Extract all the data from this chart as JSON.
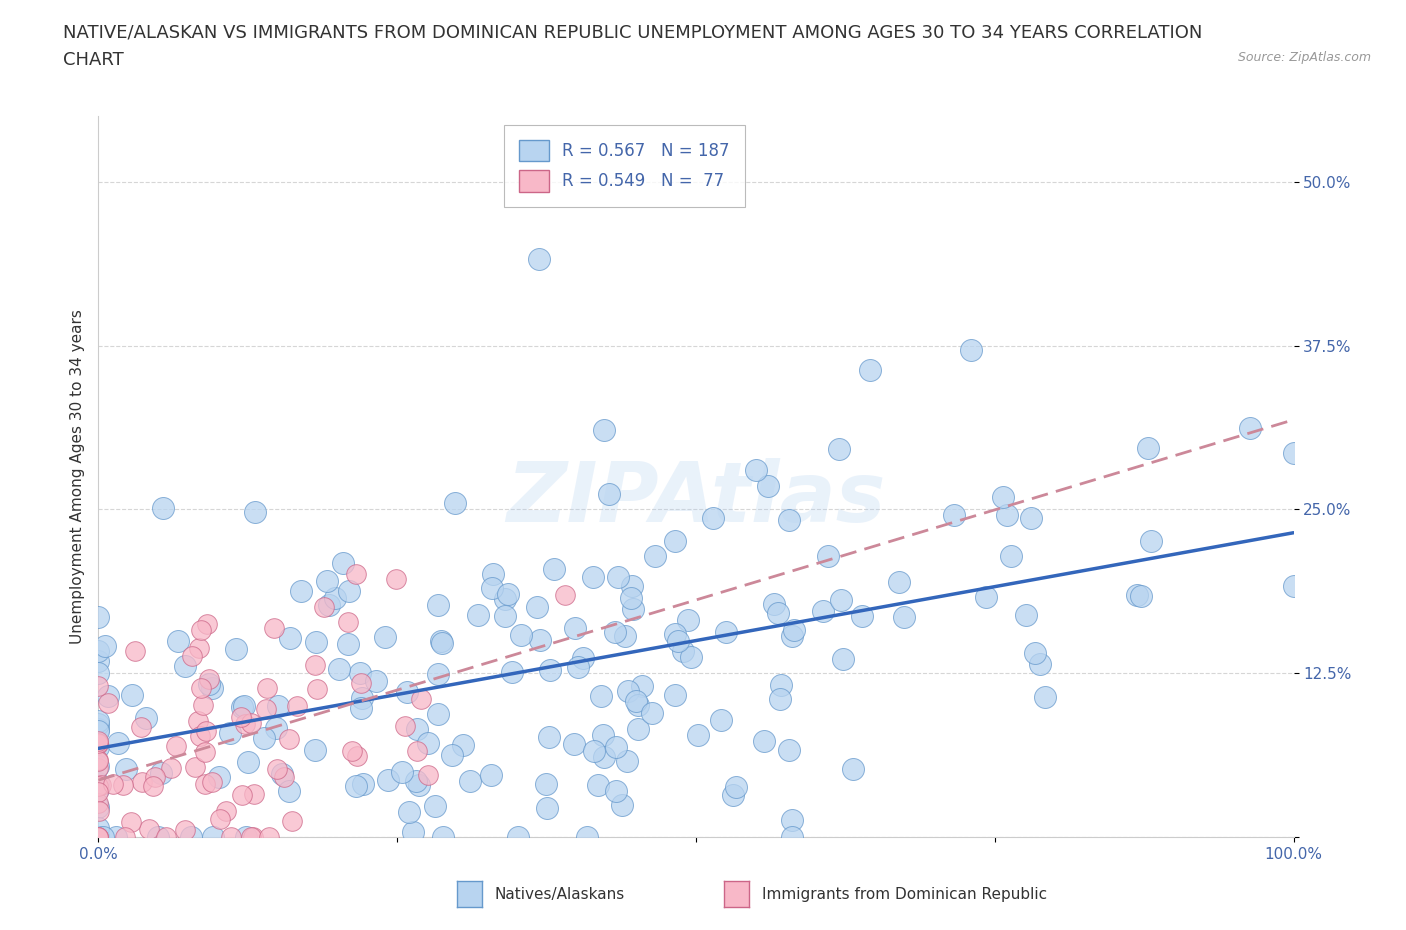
{
  "title_line1": "NATIVE/ALASKAN VS IMMIGRANTS FROM DOMINICAN REPUBLIC UNEMPLOYMENT AMONG AGES 30 TO 34 YEARS CORRELATION",
  "title_line2": "CHART",
  "source": "Source: ZipAtlas.com",
  "ylabel": "Unemployment Among Ages 30 to 34 years",
  "xlim": [
    0,
    1.0
  ],
  "ylim": [
    0,
    0.55
  ],
  "xticks": [
    0.0,
    0.25,
    0.5,
    0.75,
    1.0
  ],
  "xticklabels": [
    "0.0%",
    "",
    "",
    "",
    "100.0%"
  ],
  "yticks": [
    0.0,
    0.125,
    0.25,
    0.375,
    0.5
  ],
  "yticklabels": [
    "",
    "12.5%",
    "25.0%",
    "37.5%",
    "50.0%"
  ],
  "native_R": 0.567,
  "native_N": 187,
  "immigrant_R": 0.549,
  "immigrant_N": 77,
  "native_color": "#b8d4f0",
  "native_edge_color": "#6699cc",
  "immigrant_color": "#f8b8c8",
  "immigrant_edge_color": "#cc6688",
  "native_line_color": "#3366bb",
  "immigrant_line_color": "#cc8899",
  "legend_label_native": "Natives/Alaskans",
  "legend_label_immigrant": "Immigrants from Dominican Republic",
  "watermark": "ZIPAtlas",
  "background_color": "#ffffff",
  "grid_color": "#cccccc",
  "title_fontsize": 13,
  "axis_label_fontsize": 11,
  "tick_fontsize": 11,
  "legend_fontsize": 12,
  "tick_color": "#4466aa"
}
